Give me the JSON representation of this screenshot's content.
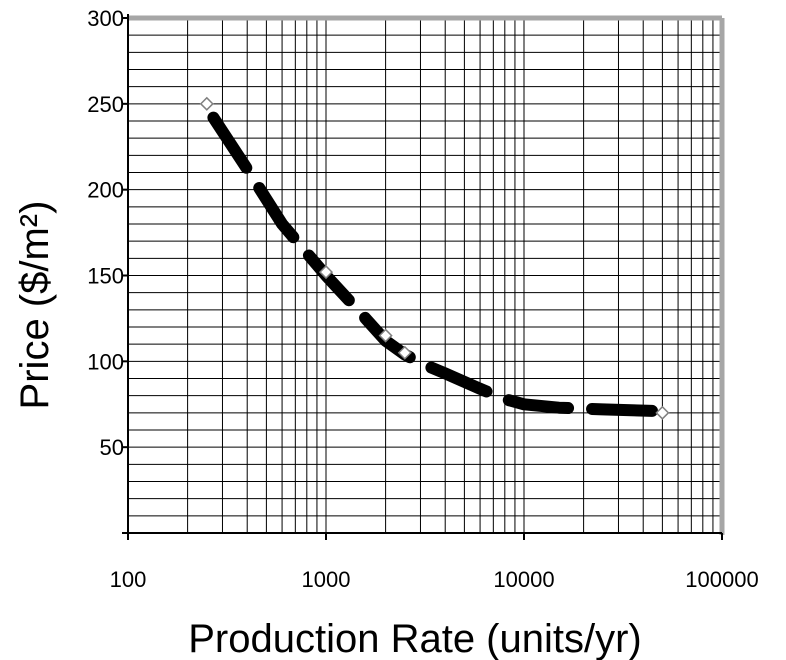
{
  "chart_data": {
    "type": "line",
    "title": "",
    "xlabel": "Production Rate (units/yr)",
    "ylabel": "Price ($/m²)",
    "x_scale": "log",
    "xlim": [
      100,
      100000
    ],
    "ylim": [
      0,
      300
    ],
    "x_tick_labels": [
      "100",
      "1000",
      "10000",
      "100000"
    ],
    "y_tick_labels": [
      "50",
      "100",
      "150",
      "200",
      "250",
      "300"
    ],
    "y_minor_step": 10,
    "grid": true,
    "frame_color": "#a6a6a6",
    "series": [
      {
        "style": "thick-dashed",
        "color": "#000000",
        "points": [
          [
            270,
            242
          ],
          [
            400,
            212
          ],
          [
            600,
            180
          ],
          [
            1000,
            150
          ],
          [
            1500,
            128
          ],
          [
            2000,
            112
          ],
          [
            2500,
            104
          ],
          [
            3000,
            99
          ],
          [
            4000,
            93
          ],
          [
            6000,
            84
          ],
          [
            8000,
            78
          ],
          [
            10000,
            75
          ],
          [
            15000,
            73
          ],
          [
            25000,
            72
          ],
          [
            35000,
            71.5
          ],
          [
            48000,
            71
          ]
        ]
      },
      {
        "style": "diamond-markers",
        "color": "#808080",
        "points": [
          [
            250,
            250
          ],
          [
            1000,
            152
          ],
          [
            2000,
            115
          ],
          [
            2500,
            105
          ],
          [
            50000,
            70
          ]
        ]
      }
    ]
  }
}
